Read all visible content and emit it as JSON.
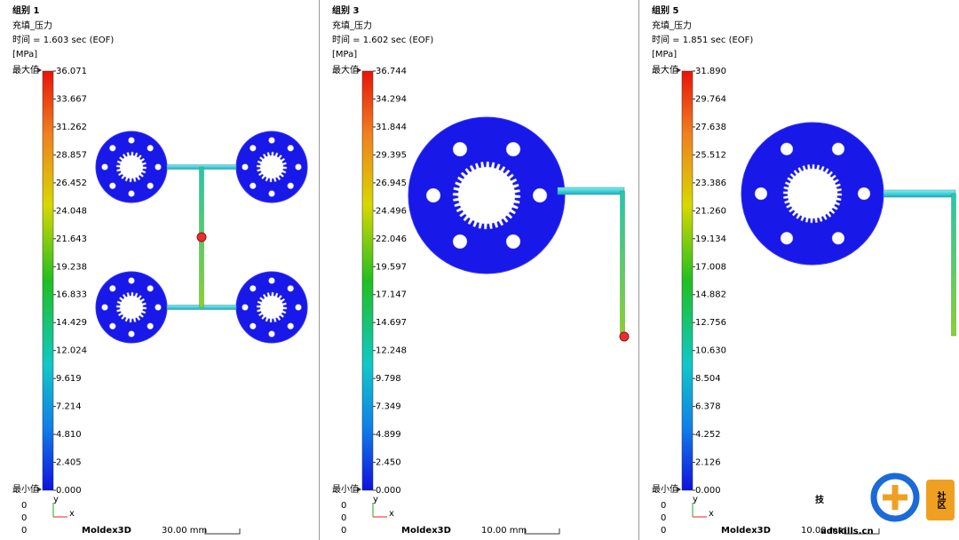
{
  "panels": [
    {
      "group": "组别 1",
      "result": "充填_压力",
      "time": "时间 = 1.603 sec (EOF)",
      "unit": "[MPa]",
      "max_label": "最大值",
      "min_label": "最小值",
      "scale_ticks": [
        "36.071",
        "33.667",
        "31.262",
        "28.857",
        "26.452",
        "24.048",
        "21.643",
        "19.238",
        "16.833",
        "14.429",
        "12.024",
        "9.619",
        "7.214",
        "4.810",
        "2.405",
        "0.000"
      ],
      "origin": [
        "0",
        "0",
        "0"
      ],
      "axes": [
        "y",
        "x"
      ],
      "logo": "Moldex3D",
      "scale_bar": "30.00 mm"
    },
    {
      "group": "组别 3",
      "result": "充填_压力",
      "time": "时间 = 1.602 sec (EOF)",
      "unit": "[MPa]",
      "max_label": "最大值",
      "min_label": "最小值",
      "scale_ticks": [
        "36.744",
        "34.294",
        "31.844",
        "29.395",
        "26.945",
        "24.496",
        "22.046",
        "19.597",
        "17.147",
        "14.697",
        "12.248",
        "9.798",
        "7.349",
        "4.899",
        "2.450",
        "0.000"
      ],
      "origin": [
        "0",
        "0",
        "0"
      ],
      "axes": [
        "y",
        "x"
      ],
      "logo": "Moldex3D",
      "scale_bar": "10.00 mm"
    },
    {
      "group": "组别 5",
      "result": "充填_压力",
      "time": "时间 = 1.851 sec (EOF)",
      "unit": "[MPa]",
      "max_label": "最大值",
      "min_label": "最小值",
      "scale_ticks": [
        "31.890",
        "29.764",
        "27.638",
        "25.512",
        "23.386",
        "21.260",
        "19.134",
        "17.008",
        "14.882",
        "12.756",
        "10.630",
        "8.504",
        "6.378",
        "4.252",
        "2.126",
        "0.000"
      ],
      "origin": [
        "0",
        "0",
        "0"
      ],
      "axes": [
        "y",
        "x"
      ],
      "logo": "Moldex3D",
      "scale_bar": "10.00 mm"
    }
  ],
  "watermark": {
    "mark": "技",
    "badge": "社区",
    "url": "adskills.cn"
  }
}
